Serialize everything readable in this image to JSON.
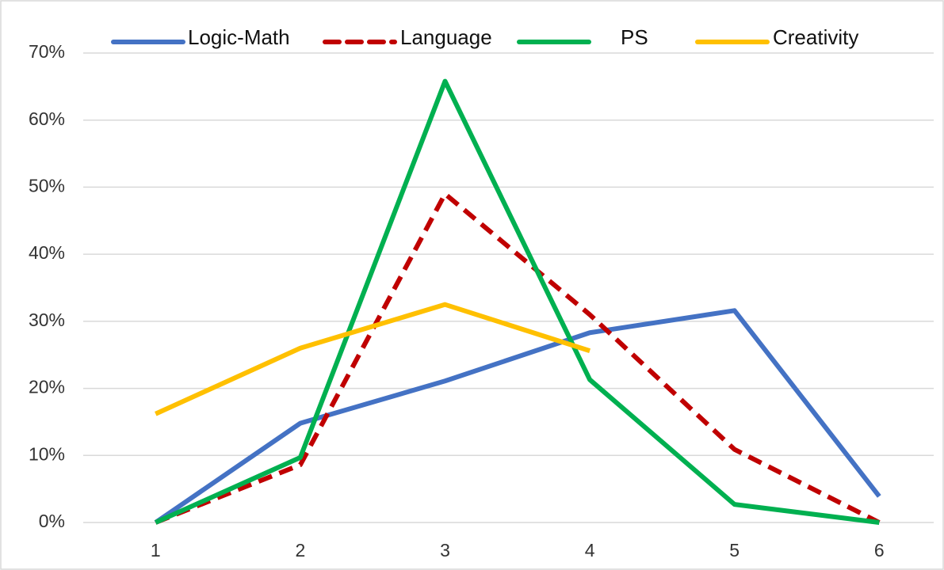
{
  "chart_data": {
    "type": "line",
    "categories": [
      "1",
      "2",
      "3",
      "4",
      "5",
      "6"
    ],
    "series": [
      {
        "name": "Logic-Math",
        "color": "#4472c4",
        "dash": false,
        "values": [
          0,
          14.8,
          21.1,
          28.3,
          31.6,
          3.9
        ]
      },
      {
        "name": "Language",
        "color": "#c00000",
        "dash": true,
        "values": [
          0,
          8.6,
          49.0,
          31.0,
          10.9,
          0
        ]
      },
      {
        "name": "PS",
        "color": "#00b050",
        "dash": false,
        "values": [
          0,
          9.7,
          65.8,
          21.3,
          2.7,
          0
        ]
      },
      {
        "name": "Creativity",
        "color": "#ffc000",
        "dash": false,
        "values": [
          16.2,
          26.0,
          32.5,
          25.6,
          null,
          null
        ]
      }
    ],
    "ylim": [
      0,
      70
    ],
    "yticks": [
      {
        "value": 0,
        "label": "0%"
      },
      {
        "value": 10,
        "label": "10%"
      },
      {
        "value": 20,
        "label": "20%"
      },
      {
        "value": 30,
        "label": "30%"
      },
      {
        "value": 40,
        "label": "40%"
      },
      {
        "value": 50,
        "label": "50%"
      },
      {
        "value": 60,
        "label": "60%"
      },
      {
        "value": 70,
        "label": "70%"
      }
    ],
    "grid": true,
    "legend": "top"
  }
}
